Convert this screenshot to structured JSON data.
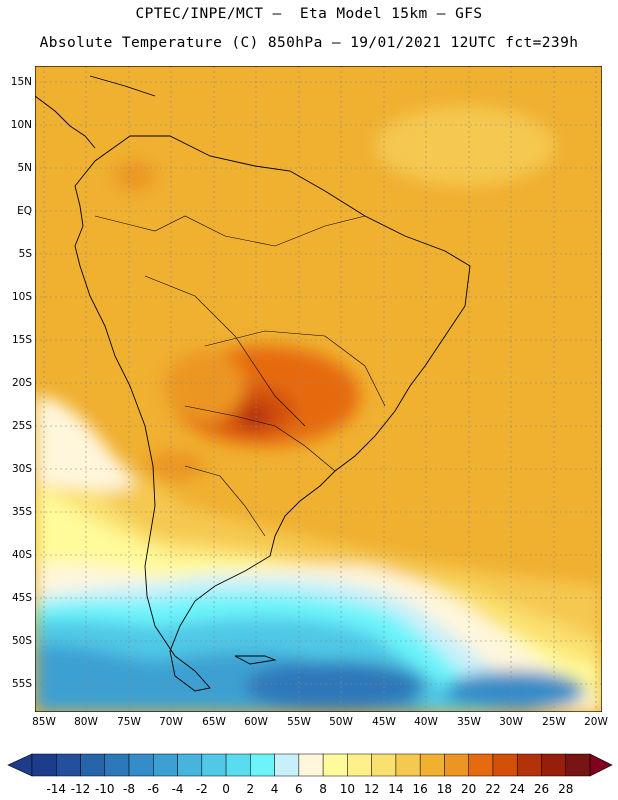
{
  "header": {
    "line1": "CPTEC/INPE/MCT –  Eta Model 15km – GFS",
    "line2": "Absolute Temperature (C) 850hPa – 19/01/2021 12UTC fct=239h"
  },
  "map": {
    "lat_labels": [
      "15N",
      "10N",
      "5N",
      "EQ",
      "5S",
      "10S",
      "15S",
      "20S",
      "25S",
      "30S",
      "35S",
      "40S",
      "45S",
      "50S",
      "55S"
    ],
    "lon_labels": [
      "85W",
      "80W",
      "75W",
      "70W",
      "65W",
      "60W",
      "55W",
      "50W",
      "45W",
      "40W",
      "35W",
      "30W",
      "25W",
      "20W"
    ]
  },
  "colorbar": {
    "labels": [
      "-14",
      "-12",
      "-10",
      "-8",
      "-6",
      "-4",
      "-2",
      "0",
      "2",
      "4",
      "6",
      "8",
      "10",
      "12",
      "14",
      "16",
      "18",
      "20",
      "22",
      "24",
      "26",
      "28"
    ],
    "colors": [
      "#1e3c8c",
      "#23509c",
      "#2864aa",
      "#2d78b9",
      "#348cc8",
      "#3ca0d2",
      "#46b4dc",
      "#50c8e6",
      "#5adcf0",
      "#6cf4fa",
      "#c8f0fa",
      "#fff6dc",
      "#fffa9a",
      "#fff08a",
      "#fae070",
      "#f5c84f",
      "#f0b030",
      "#eb9623",
      "#e66a0f",
      "#d2500a",
      "#b4320a",
      "#961e0a",
      "#781414"
    ],
    "under_color": "#1e3c8c",
    "over_color": "#800020"
  }
}
